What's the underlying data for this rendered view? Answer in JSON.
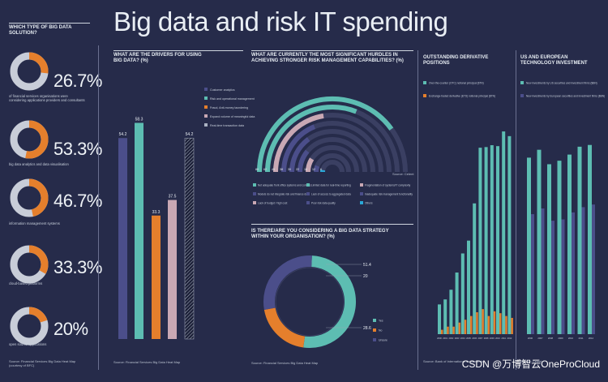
{
  "title": "Big data and risk IT spending",
  "watermark": "CSDN @万博智云OneProCloud",
  "colors": {
    "teal": "#5dbdb2",
    "orange": "#e57f2c",
    "purple": "#4b4e8a",
    "pink": "#c9a8b4",
    "blue": "#2aa8d8",
    "light": "#c8cdd8",
    "bg": "#262b4a",
    "dark": "#1c2038"
  },
  "left": {
    "heading": "WHICH TYPE OF BIG DATA SOLUTION?",
    "items": [
      {
        "value": 26.7,
        "pct": "26.7%",
        "desc": "of financial services organisations were considering applications providers and consultants"
      },
      {
        "value": 53.3,
        "pct": "53.3%",
        "desc": "big data analytics and data visualisation"
      },
      {
        "value": 46.7,
        "pct": "46.7%",
        "desc": "information management systems"
      },
      {
        "value": 33.3,
        "pct": "33.3%",
        "desc": "cloud-based platforms"
      },
      {
        "value": 20,
        "pct": "20%",
        "desc": "open source applications"
      }
    ],
    "source": "Source: Financial Services Big Data Heat Map (courtesy of BFC)"
  },
  "drivers": {
    "heading": "WHAT ARE THE DRIVERS FOR USING BIG DATA? (%)",
    "source": "Source: Financial Services Big Data Heat Map",
    "chart_data": {
      "type": "bar",
      "categories": [
        "Customer analytics",
        "Risk and operational management",
        "Fraud, Anti-money laundering",
        "Expand volume of meaningful data",
        "Real-time transaction data"
      ],
      "values": [
        54.2,
        58.3,
        33.3,
        37.5,
        54.2
      ],
      "labels": [
        "54.2",
        "58.3",
        "33.3",
        "37.5",
        "54.2"
      ],
      "ylim": [
        0,
        70
      ]
    }
  },
  "hurdles": {
    "heading": "WHAT ARE CURRENTLY THE MOST SIGNIFICANT HURDLES IN ACHIEVING STRONGER RISK MANAGEMENT CAPABILITIES? (%)",
    "source": "Source: Celent",
    "chart_data": {
      "type": "bar",
      "categories": [
        "Not adequate front office systems",
        "Limited data for real-time reporting",
        "Fragmentation of systems",
        "Not integrated risk and finance",
        "Lack of access to aggregated data",
        "Inadequate risk management functionality",
        "Lack of budget",
        "Poor risk data quality",
        "Others"
      ],
      "values": [
        80,
        62,
        45,
        38,
        30,
        22,
        18,
        12,
        6
      ],
      "labels": [
        "80",
        "62",
        "45",
        "38",
        "30",
        "22",
        "18",
        "12",
        "6"
      ]
    },
    "legend": [
      "Not adequate front office systems and controls",
      "Limited data for real-time reporting",
      "Fragmentation of systems/IT complexity",
      "Models do not integrate risk and finance data",
      "Lack of access to aggregated data",
      "Inadequate risk management functionality",
      "Lack of budget / high cost",
      "Poor risk data quality",
      "Others"
    ]
  },
  "strategy": {
    "heading": "IS THERE/ARE YOU CONSIDERING A BIG DATA STRATEGY WITHIN YOUR ORGANISATION? (%)",
    "source": "Source: Financial Services Big Data Heat Map",
    "chart_data": {
      "type": "pie",
      "categories": [
        "Yes",
        "No",
        "Unsure"
      ],
      "values": [
        51.4,
        20,
        28.6
      ],
      "labels": [
        "51.4",
        "20",
        "28.6"
      ]
    }
  },
  "derivatives": {
    "heading": "OUTSTANDING DERIVATIVE POSITIONS",
    "legend": [
      "Over-the-counter (OTC) notional principal ($TN)",
      "Exchange-traded derivative (ETD) notional principal ($TN)"
    ],
    "source": "Source: Bank of International Settlements",
    "chart_data": {
      "type": "bar",
      "categories": [
        "2000",
        "2001",
        "2002",
        "2003",
        "2004",
        "2005",
        "2006",
        "2007",
        "2008",
        "2009",
        "2010",
        "2011",
        "2012"
      ],
      "series": [
        {
          "name": "OTC",
          "values": [
            95,
            111,
            142,
            197,
            258,
            299,
            418,
            596,
            598,
            604,
            601,
            648,
            633
          ]
        },
        {
          "name": "ETD",
          "values": [
            14,
            24,
            24,
            37,
            46,
            58,
            70,
            80,
            58,
            73,
            67,
            58,
            52
          ]
        }
      ],
      "ylim": [
        0,
        700
      ]
    }
  },
  "itinvest": {
    "heading": "US AND EUROPEAN TECHNOLOGY INVESTMENT",
    "legend": [
      "New investments by US securities and investment firms ($BN)",
      "New investments by European securities and investment firms ($BN)"
    ],
    "source": "Source: Celent",
    "chart_data": {
      "type": "bar",
      "categories": [
        "2006",
        "2007",
        "2008",
        "2009",
        "2010",
        "2011",
        "2012"
      ],
      "series": [
        {
          "name": "US",
          "values": [
            40.3,
            42.1,
            38.8,
            39.6,
            41.0,
            42.8,
            43.2
          ]
        },
        {
          "name": "Europe",
          "values": [
            27.4,
            28.7,
            25.9,
            26.2,
            27.8,
            29.0,
            29.6
          ]
        }
      ],
      "ylim": [
        0,
        50
      ]
    }
  }
}
